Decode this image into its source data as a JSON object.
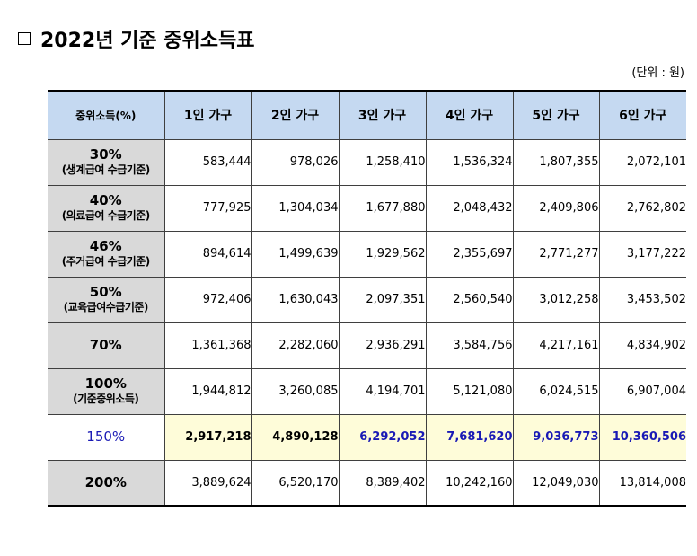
{
  "title": "2022년 기준 중위소득표",
  "unit": "(단위 : 원)",
  "table": {
    "headers": [
      "중위소득(%)",
      "1인 가구",
      "2인 가구",
      "3인 가구",
      "4인 가구",
      "5인 가구",
      "6인 가구"
    ],
    "rows": [
      {
        "pct": "30%",
        "sub": "(생계급여 수급기준)",
        "values": [
          "583,444",
          "978,026",
          "1,258,410",
          "1,536,324",
          "1,807,355",
          "2,072,101"
        ]
      },
      {
        "pct": "40%",
        "sub": "(의료급여 수급기준)",
        "values": [
          "777,925",
          "1,304,034",
          "1,677,880",
          "2,048,432",
          "2,409,806",
          "2,762,802"
        ]
      },
      {
        "pct": "46%",
        "sub": "(주거급여 수급기준)",
        "values": [
          "894,614",
          "1,499,639",
          "1,929,562",
          "2,355,697",
          "2,771,277",
          "3,177,222"
        ]
      },
      {
        "pct": "50%",
        "sub": "(교육급여수급기준)",
        "values": [
          "972,406",
          "1,630,043",
          "2,097,351",
          "2,560,540",
          "3,012,258",
          "3,453,502"
        ]
      },
      {
        "pct": "70%",
        "sub": "",
        "values": [
          "1,361,368",
          "2,282,060",
          "2,936,291",
          "3,584,756",
          "4,217,161",
          "4,834,902"
        ]
      },
      {
        "pct": "100%",
        "sub": "(기준중위소득)",
        "values": [
          "1,944,812",
          "3,260,085",
          "4,194,701",
          "5,121,080",
          "6,024,515",
          "6,907,004"
        ]
      },
      {
        "pct": "150%",
        "sub": "",
        "values": [
          "2,917,218",
          "4,890,128",
          "6,292,052",
          "7,681,620",
          "9,036,773",
          "10,360,506"
        ]
      },
      {
        "pct": "200%",
        "sub": "",
        "values": [
          "3,889,624",
          "6,520,170",
          "8,389,402",
          "10,242,160",
          "12,049,030",
          "13,814,008"
        ]
      }
    ]
  },
  "colors": {
    "header_bg": "#c5d9f1",
    "label_bg": "#d9d9d9",
    "highlight_bg": "#fefcd9",
    "highlight_text": "#1a1ab5"
  }
}
